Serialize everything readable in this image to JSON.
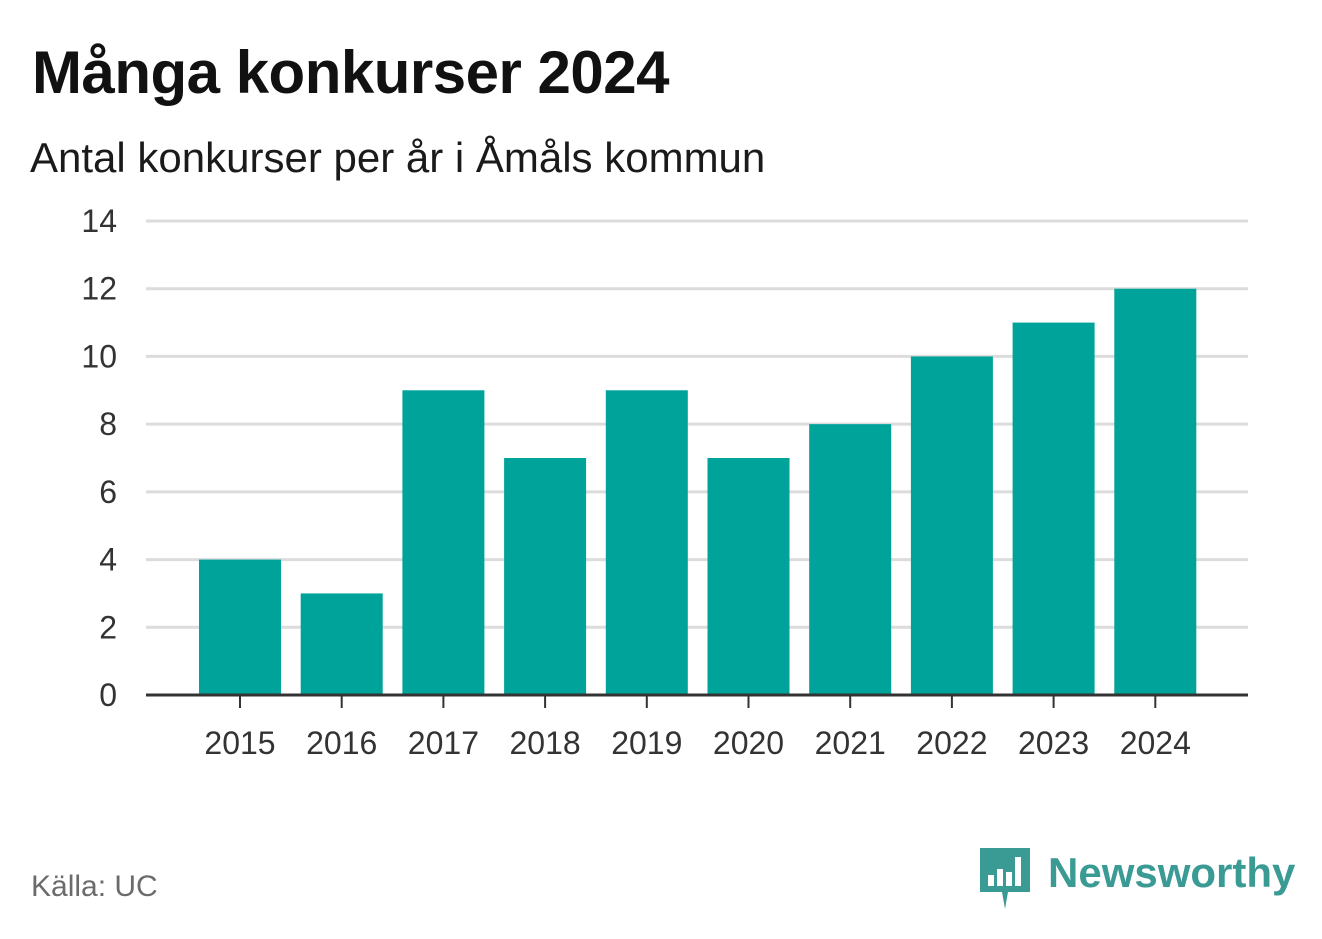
{
  "title": "Många konkurser 2024",
  "subtitle": "Antal konkurser per år i Åmåls kommun",
  "source": "Källa: UC",
  "brand": {
    "name": "Newsworthy",
    "logo_icon": "newsworthy-logo-icon",
    "color": "#3a9a94"
  },
  "colors": {
    "bar": "#00a39a",
    "grid": "#dcdcdc",
    "axis": "#333333"
  },
  "chart_data": {
    "type": "bar",
    "categories": [
      "2015",
      "2016",
      "2017",
      "2018",
      "2019",
      "2020",
      "2021",
      "2022",
      "2023",
      "2024"
    ],
    "values": [
      4,
      3,
      9,
      7,
      9,
      7,
      8,
      10,
      11,
      12
    ],
    "yticks": [
      "0",
      "2",
      "4",
      "6",
      "8",
      "10",
      "12",
      "14"
    ],
    "ylim": [
      0,
      14
    ],
    "grid": true,
    "title": "Många konkurser 2024",
    "subtitle": "Antal konkurser per år i Åmåls kommun"
  }
}
